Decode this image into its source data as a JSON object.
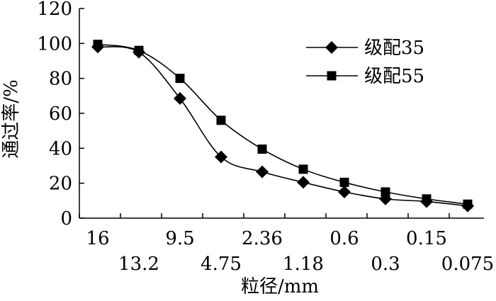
{
  "chart_data": {
    "type": "line",
    "xlabel": "粒径/mm",
    "ylabel": "通过率/%",
    "ylim": [
      0,
      120
    ],
    "yticks": [
      "0",
      "20",
      "40",
      "60",
      "80",
      "100",
      "120"
    ],
    "categories": [
      "16",
      "13.2",
      "9.5",
      "4.75",
      "2.36",
      "1.18",
      "0.6",
      "0.3",
      "0.15",
      "0.075"
    ],
    "category_rows": {
      "upper": [
        "16",
        "9.5",
        "2.36",
        "0.6",
        "0.15"
      ],
      "lower": [
        "13.2",
        "4.75",
        "1.18",
        "0.3",
        "0.075"
      ]
    },
    "x_tick_positions": [
      0,
      1,
      2,
      3,
      4,
      5,
      6,
      7,
      8,
      9
    ],
    "series": [
      {
        "name": "级配35",
        "marker": "diamond",
        "x": [
          0,
          1,
          2,
          3,
          4,
          5,
          6,
          7,
          8,
          9
        ],
        "values": [
          98,
          95,
          68.5,
          35,
          26.5,
          20.5,
          15,
          11,
          9.5,
          7
        ]
      },
      {
        "name": "级配55",
        "marker": "square",
        "x": [
          0,
          1,
          2,
          3,
          4,
          5,
          6,
          7,
          8,
          9
        ],
        "values": [
          99.5,
          96,
          80,
          56,
          39.5,
          28,
          20.5,
          15,
          11,
          8
        ]
      }
    ],
    "grid": false,
    "legend_position": "top-right"
  }
}
